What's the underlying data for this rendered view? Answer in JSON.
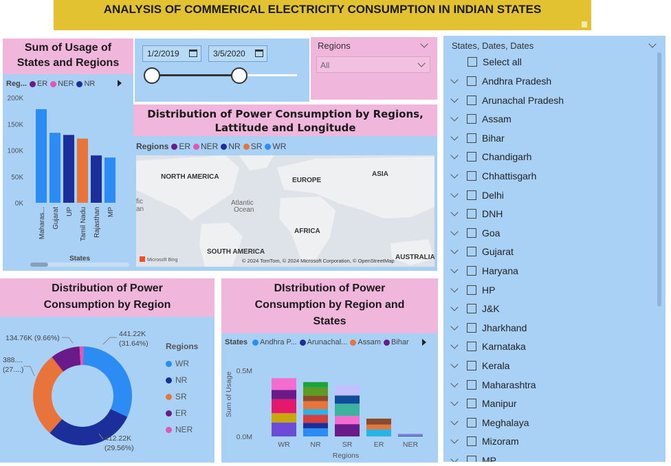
{
  "header": {
    "title": "ANALYSIS OF COMMERICAL ELECTRICITY CONSUMPTION IN INDIAN STATES"
  },
  "colors": {
    "ER": "#6b1a8a",
    "NER": "#e256b7",
    "NR": "#1c2e9a",
    "SR": "#e8743b",
    "WR": "#2c8cf4"
  },
  "usage_chart": {
    "title": "Sum of Usage of States and Regions",
    "legend_label": "Reg...",
    "legend": [
      "ER",
      "NER",
      "NR"
    ],
    "x_title": "States",
    "y_ticks": [
      "200K",
      "150K",
      "100K",
      "50K",
      "0K"
    ]
  },
  "date_slicer": {
    "start": "1/2/2019",
    "end": "3/5/2020"
  },
  "regions_slicer": {
    "label": "Regions",
    "value": "All"
  },
  "map_chart": {
    "title": "Distribution of Power Consumption by Regions, Lattitude and Longitude",
    "legend_label": "Regions",
    "legend": [
      "ER",
      "NER",
      "NR",
      "SR",
      "WR"
    ],
    "labels": {
      "na": "NORTH AMERICA",
      "eu": "EUROPE",
      "asia": "ASIA",
      "atl1": "Atlantic",
      "atl2": "Ocean",
      "africa": "AFRICA",
      "sa": "SOUTH AMERICA",
      "aus": "AUSTRALIA",
      "pac1": "fic",
      "pac2": "an"
    },
    "bing": "Microsoft Bing",
    "copyright": "© 2024 TomTom, © 2024 Microsoft Corporation, © OpenStreetMap"
  },
  "donut_chart": {
    "title": "Distribution of Power Consumption by Region",
    "legend_title": "Regions",
    "legend": [
      "WR",
      "NR",
      "SR",
      "ER",
      "NER"
    ],
    "labels": {
      "wr1": "441.22K",
      "wr2": "(31.64%)",
      "nr1": "412.22K",
      "nr2": "(29.56%)",
      "sr1": "388....",
      "sr2": "(27....)",
      "er": "134.76K (9.66%)"
    }
  },
  "stacked_chart": {
    "title": "DIstribution of Power Consumption by Region and States",
    "legend_label": "States",
    "legend": [
      "Andhra P...",
      "Arunachal...",
      "Assam",
      "Bihar"
    ],
    "y_title": "Sum of Usage",
    "x_title": "Regions",
    "y_ticks": [
      "0.5M",
      "0.0M"
    ]
  },
  "chart_data": [
    {
      "type": "bar",
      "title": "Sum of Usage of States and Regions",
      "xlabel": "States",
      "ylabel": "",
      "ylim": [
        0,
        200000
      ],
      "categories": [
        "Maharas...",
        "Gujarat",
        "UP",
        "Tamil Nadu",
        "Rajasthan",
        "MP"
      ],
      "values": [
        178000,
        133000,
        129000,
        122000,
        90000,
        86000
      ],
      "regions": [
        "WR",
        "WR",
        "NR",
        "SR",
        "NR",
        "WR"
      ]
    },
    {
      "type": "pie",
      "title": "Distribution of Power Consumption by Region",
      "categories": [
        "WR",
        "NR",
        "SR",
        "ER",
        "NER"
      ],
      "values": [
        441220,
        412220,
        388000,
        134760,
        18000
      ],
      "percent": [
        31.64,
        29.56,
        27.8,
        9.66,
        1.3
      ]
    },
    {
      "type": "bar",
      "title": "DIstribution of Power Consumption by Region and States",
      "xlabel": "Regions",
      "ylabel": "Sum of Usage",
      "ylim": [
        0,
        0.5
      ],
      "categories": [
        "WR",
        "NR",
        "SR",
        "ER",
        "NER"
      ],
      "totals": [
        0.441,
        0.412,
        0.388,
        0.135,
        0.018
      ]
    }
  ],
  "states_slicer": {
    "title": "States, Dates, Dates",
    "select_all": "Select all",
    "items": [
      "Andhra Pradesh",
      "Arunachal Pradesh",
      "Assam",
      "Bihar",
      "Chandigarh",
      "Chhattisgarh",
      "Delhi",
      "DNH",
      "Goa",
      "Gujarat",
      "Haryana",
      "HP",
      "J&K",
      "Jharkhand",
      "Karnataka",
      "Kerala",
      "Maharashtra",
      "Manipur",
      "Meghalaya",
      "Mizoram"
    ],
    "last_partial": "MP"
  }
}
